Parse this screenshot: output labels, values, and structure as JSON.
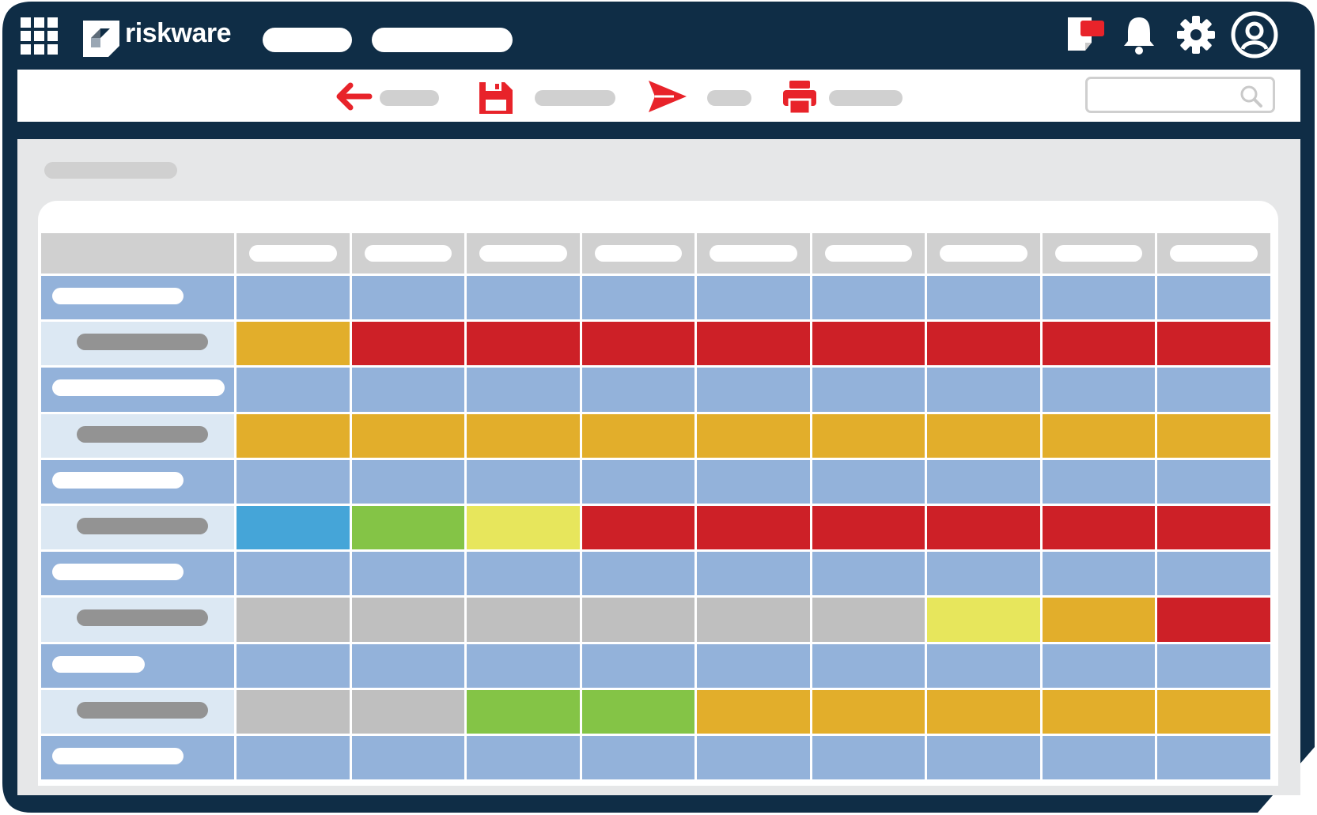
{
  "app": {
    "brand_name": "riskware",
    "colors": {
      "frame": "#0f2d46",
      "accent": "#e8232a",
      "section_row": "#93b2da",
      "item_row_label": "#dce8f3",
      "header_cell": "#d0d0d0"
    }
  },
  "header": {
    "icons": [
      "apps-grid-icon",
      "riskware-logo-icon",
      "notes-icon",
      "bell-icon",
      "gear-icon",
      "user-icon"
    ]
  },
  "toolbar": {
    "icons": [
      "back-arrow-icon",
      "save-icon",
      "send-icon",
      "print-icon",
      "search-icon"
    ]
  },
  "matrix": {
    "column_count": 9,
    "status_colors": {
      "orange": "#e2ae2b",
      "red": "#cd2027",
      "blue": "#45a5d8",
      "green": "#84c446",
      "yellow": "#e7e65c",
      "gray": "#bfbfbf",
      "section": "#93b2da"
    },
    "rows": [
      {
        "type": "section",
        "cells": [
          "section",
          "section",
          "section",
          "section",
          "section",
          "section",
          "section",
          "section",
          "section"
        ]
      },
      {
        "type": "item",
        "cells": [
          "orange",
          "red",
          "red",
          "red",
          "red",
          "red",
          "red",
          "red",
          "red"
        ]
      },
      {
        "type": "section",
        "cells": [
          "section",
          "section",
          "section",
          "section",
          "section",
          "section",
          "section",
          "section",
          "section"
        ]
      },
      {
        "type": "item",
        "cells": [
          "orange",
          "orange",
          "orange",
          "orange",
          "orange",
          "orange",
          "orange",
          "orange",
          "orange"
        ]
      },
      {
        "type": "section",
        "cells": [
          "section",
          "section",
          "section",
          "section",
          "section",
          "section",
          "section",
          "section",
          "section"
        ]
      },
      {
        "type": "item",
        "cells": [
          "blue",
          "green",
          "yellow",
          "red",
          "red",
          "red",
          "red",
          "red",
          "red"
        ]
      },
      {
        "type": "section",
        "cells": [
          "section",
          "section",
          "section",
          "section",
          "section",
          "section",
          "section",
          "section",
          "section"
        ]
      },
      {
        "type": "item",
        "cells": [
          "gray",
          "gray",
          "gray",
          "gray",
          "gray",
          "gray",
          "yellow",
          "orange",
          "red"
        ]
      },
      {
        "type": "section",
        "cells": [
          "section",
          "section",
          "section",
          "section",
          "section",
          "section",
          "section",
          "section",
          "section"
        ]
      },
      {
        "type": "item",
        "cells": [
          "gray",
          "gray",
          "green",
          "green",
          "orange",
          "orange",
          "orange",
          "orange",
          "orange"
        ]
      },
      {
        "type": "section",
        "cells": [
          "section",
          "section",
          "section",
          "section",
          "section",
          "section",
          "section",
          "section",
          "section"
        ]
      }
    ]
  }
}
